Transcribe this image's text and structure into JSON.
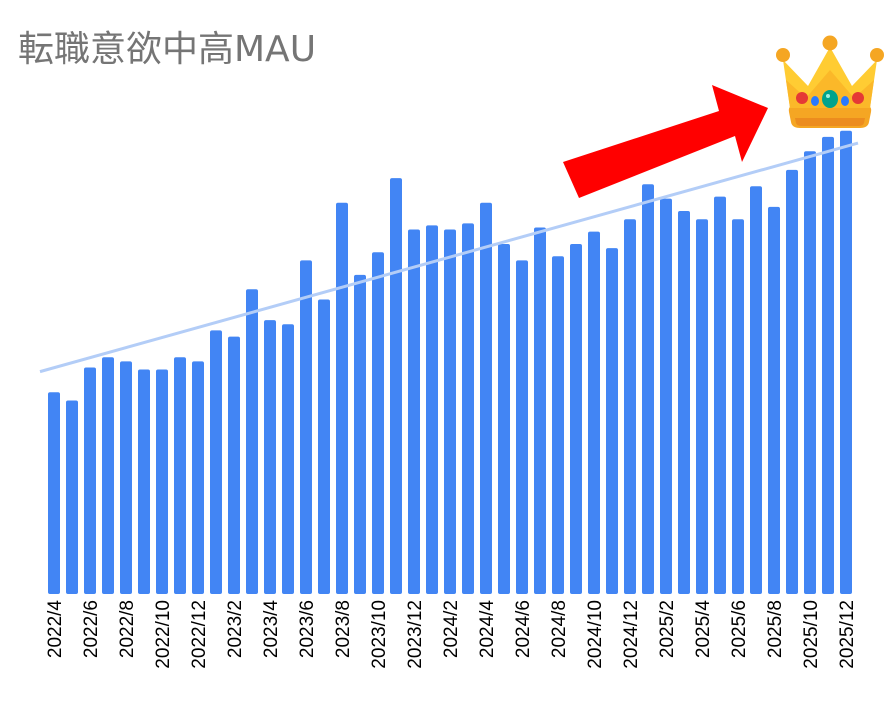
{
  "chart_data": {
    "type": "bar",
    "title": "転職意欲中高MAU",
    "xlabel": "",
    "ylabel": "",
    "ylim": [
      0,
      110
    ],
    "grid": false,
    "legend": "none",
    "categories": [
      "2022/4",
      "2022/5",
      "2022/6",
      "2022/7",
      "2022/8",
      "2022/9",
      "2022/10",
      "2022/11",
      "2022/12",
      "2023/1",
      "2023/2",
      "2023/3",
      "2023/4",
      "2023/5",
      "2023/6",
      "2023/7",
      "2023/8",
      "2023/9",
      "2023/10",
      "2023/11",
      "2023/12",
      "2024/1",
      "2024/2",
      "2024/3",
      "2024/4",
      "2024/5",
      "2024/6",
      "2024/7",
      "2024/8",
      "2024/9",
      "2024/10",
      "2024/11",
      "2024/12",
      "2025/1",
      "2025/2",
      "2025/3",
      "2025/4",
      "2025/5",
      "2025/6",
      "2025/7",
      "2025/8",
      "2025/9",
      "2025/10",
      "2025/11",
      "2025/12"
    ],
    "tick_labels": [
      "2022/4",
      "2022/6",
      "2022/8",
      "2022/10",
      "2022/12",
      "2023/2",
      "2023/4",
      "2023/6",
      "2023/8",
      "2023/10",
      "2023/12",
      "2024/2",
      "2024/4",
      "2024/6",
      "2024/8",
      "2024/10",
      "2024/12",
      "2025/2",
      "2025/4",
      "2025/6",
      "2025/8",
      "2025/10",
      "2025/12"
    ],
    "values": [
      49,
      47,
      55,
      57.5,
      56.5,
      54.5,
      54.5,
      57.5,
      56.5,
      64,
      62.5,
      74,
      66.5,
      65.5,
      81,
      71.5,
      95,
      77.5,
      83,
      101,
      88.5,
      89.5,
      88.5,
      90,
      95,
      85,
      81,
      89,
      82,
      85,
      88,
      84,
      91,
      99.5,
      96,
      93,
      91,
      96.5,
      91,
      99,
      94,
      103,
      107.5,
      111,
      112.5
    ],
    "trendline": {
      "start": 54,
      "end": 109.5
    },
    "colors": {
      "bar": "#4285f4",
      "trendline": "#b3cdf7",
      "arrow": "#ff0000"
    },
    "decorations": [
      "red-arrow",
      "crown-icon"
    ]
  }
}
